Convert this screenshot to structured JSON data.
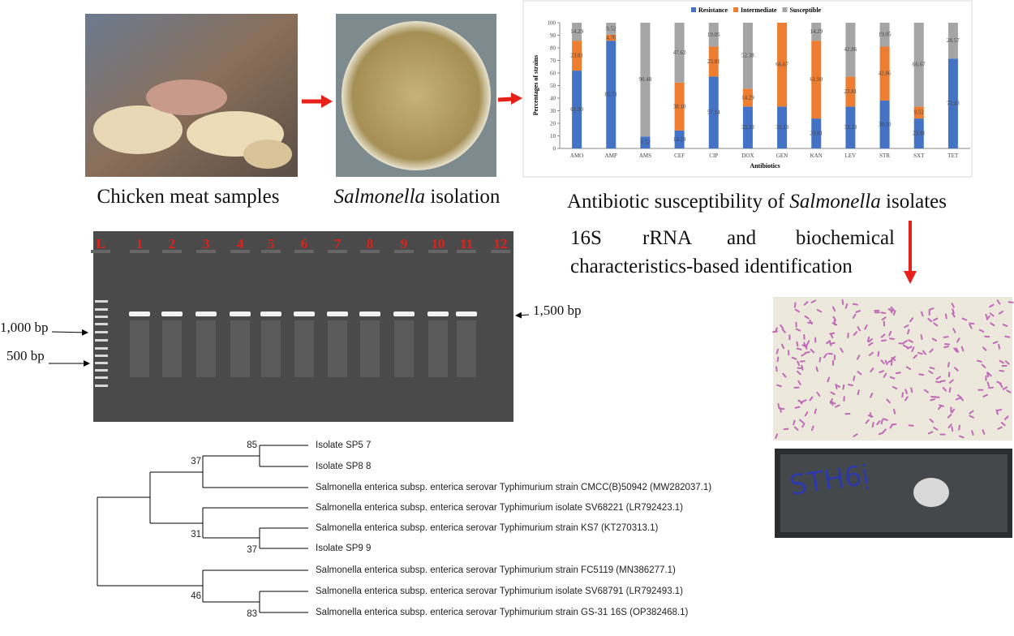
{
  "captions": {
    "chicken": "Chicken meat samples",
    "isolation": {
      "italic": "Salmonella",
      "rest": " isolation"
    },
    "susceptibility": {
      "before": "Antibiotic susceptibility of ",
      "italic": "Salmonella",
      "after": " isolates"
    }
  },
  "identification": {
    "line1": [
      "16S",
      "rRNA",
      "and",
      "biochemical"
    ],
    "line2": "characteristics-based identification"
  },
  "chart_data": {
    "type": "stacked-bar",
    "x_label": "Antibiotics",
    "y_label": "Percentages of strains",
    "categories": [
      "AMO",
      "AMP",
      "AMS",
      "CEF",
      "CIP",
      "DOX",
      "GEN",
      "KAN",
      "LEV",
      "STR",
      "SXT",
      "TET"
    ],
    "series": [
      {
        "name": "Resistance",
        "color": "#4472c4",
        "values": [
          61.9,
          85.71,
          9.52,
          14.29,
          57.14,
          33.33,
          33.33,
          23.81,
          33.33,
          38.1,
          23.81,
          71.43
        ],
        "value_labels": [
          "61.90",
          "85.71",
          "9.52",
          "14.29",
          "57.14",
          "33.33",
          "33.33",
          "23.81",
          "33.33",
          "38.10",
          "23.81",
          "71.43"
        ]
      },
      {
        "name": "Intermediate",
        "color": "#ed7d31",
        "values": [
          23.81,
          4.76,
          0,
          38.1,
          23.81,
          14.29,
          66.67,
          61.9,
          23.81,
          42.86,
          9.52,
          0
        ],
        "value_labels": [
          "23.81",
          "4.76",
          null,
          "38.10",
          "23.81",
          "14.29",
          "66.67",
          "61.90",
          "23.81",
          "42.86",
          "9.52",
          null
        ]
      },
      {
        "name": "Susceptible",
        "color": "#a5a5a5",
        "values": [
          14.29,
          9.52,
          90.48,
          47.62,
          19.05,
          52.38,
          0,
          14.29,
          42.86,
          19.05,
          66.67,
          28.57
        ],
        "value_labels": [
          "14.29",
          "9.52",
          "90.48",
          "47.62",
          "19.05",
          "52.38",
          null,
          "14.29",
          "42.86",
          "19.05",
          "66.67",
          "28.57"
        ]
      }
    ],
    "ylim": [
      0,
      100
    ],
    "yticks": [
      0,
      10,
      20,
      30,
      40,
      50,
      60,
      70,
      80,
      90,
      100
    ],
    "legend": "top"
  },
  "gel": {
    "lanes": [
      "L",
      "1",
      "2",
      "3",
      "4",
      "5",
      "6",
      "7",
      "8",
      "9",
      "10",
      "11",
      "12"
    ],
    "markers": {
      "m1000": "1,000 bp",
      "m500": "500 bp",
      "m1500": "1,500 bp"
    }
  },
  "tree": {
    "leaves": [
      "Isolate SP5 7",
      "Isolate SP8 8",
      "Salmonella enterica subsp. enterica serovar Typhimurium strain CMCC(B)50942 (MW282037.1)",
      "Salmonella enterica subsp. enterica serovar Typhimurium isolate SV68221 (LR792423.1)",
      "Salmonella enterica subsp. enterica serovar Typhimurium strain KS7 (KT270313.1)",
      "Isolate SP9 9",
      "Salmonella enterica subsp. enterica serovar Typhimurium strain FC5119 (MN386277.1)",
      "Salmonella enterica subsp. enterica serovar Typhimurium isolate SV68791 (LR792493.1)",
      "Salmonella enterica subsp. enterica serovar Typhimurium strain GS-31 16S (OP382468.1)"
    ],
    "bootstrap": [
      "85",
      "37",
      "31",
      "37",
      "46",
      "83"
    ]
  }
}
